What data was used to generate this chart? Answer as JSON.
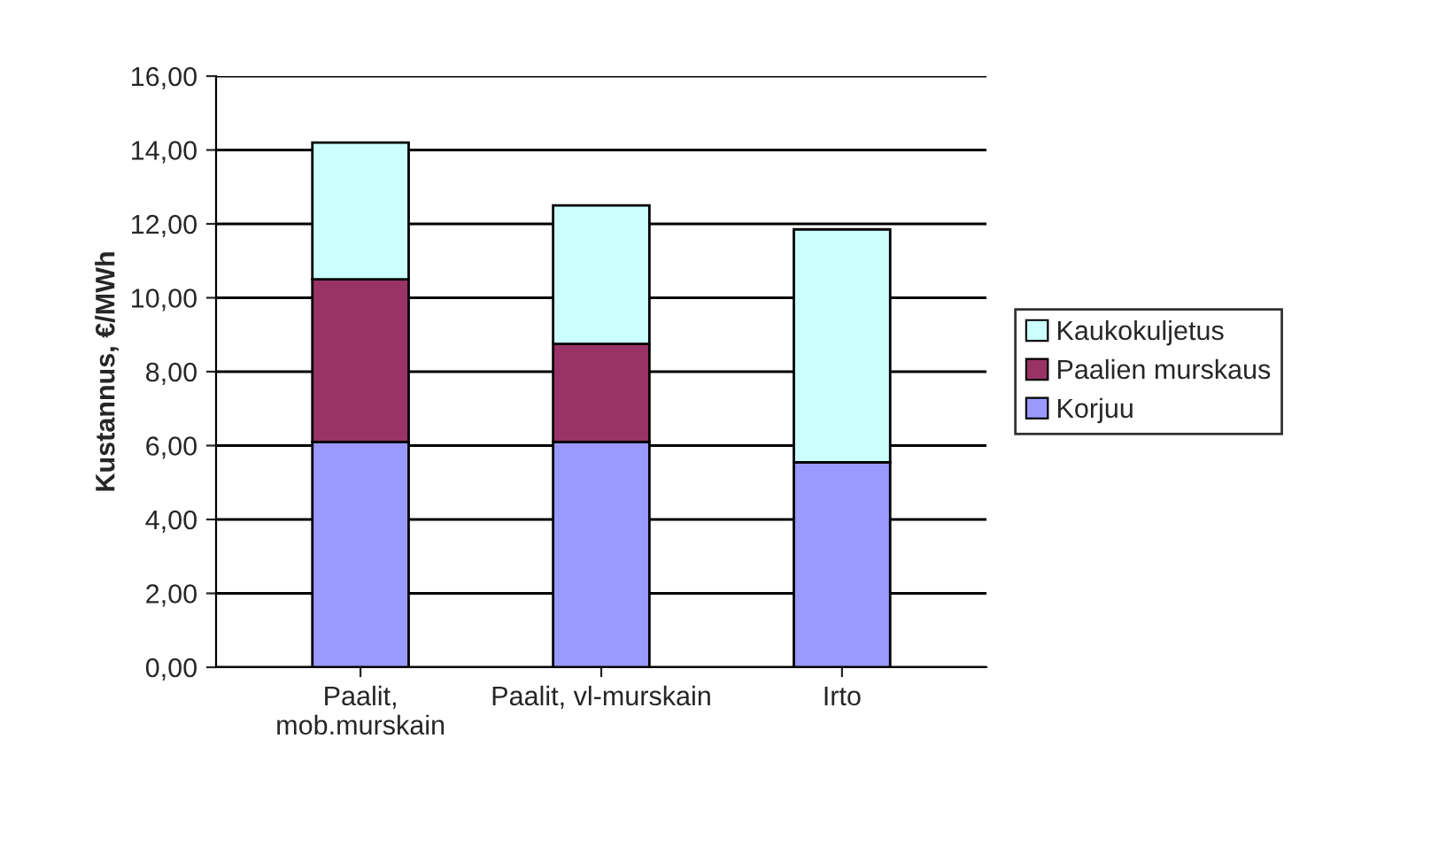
{
  "chart_data": {
    "type": "bar",
    "stacked": true,
    "ylabel": "Kustannus, €/MWh",
    "categories": [
      "Paalit,\nmob.murskain",
      "Paalit, vl-murskain",
      "Irto"
    ],
    "series": [
      {
        "name": "Korjuu",
        "color": "#9999ff",
        "values": [
          6.1,
          6.1,
          5.55
        ]
      },
      {
        "name": "Paalien murskaus",
        "color": "#993366",
        "values": [
          4.4,
          2.65,
          0
        ]
      },
      {
        "name": "Kaukokuljetus",
        "color": "#ccffff",
        "values": [
          3.7,
          3.75,
          6.3
        ]
      }
    ],
    "ylim": [
      0,
      16
    ],
    "yticks": [
      {
        "value": 0,
        "label": "0,00"
      },
      {
        "value": 2,
        "label": "2,00"
      },
      {
        "value": 4,
        "label": "4,00"
      },
      {
        "value": 6,
        "label": "6,00"
      },
      {
        "value": 8,
        "label": "8,00"
      },
      {
        "value": 10,
        "label": "10,00"
      },
      {
        "value": 12,
        "label": "12,00"
      },
      {
        "value": 14,
        "label": "14,00"
      },
      {
        "value": 16,
        "label": "16,00"
      }
    ],
    "grid": "y",
    "legend": "right"
  }
}
